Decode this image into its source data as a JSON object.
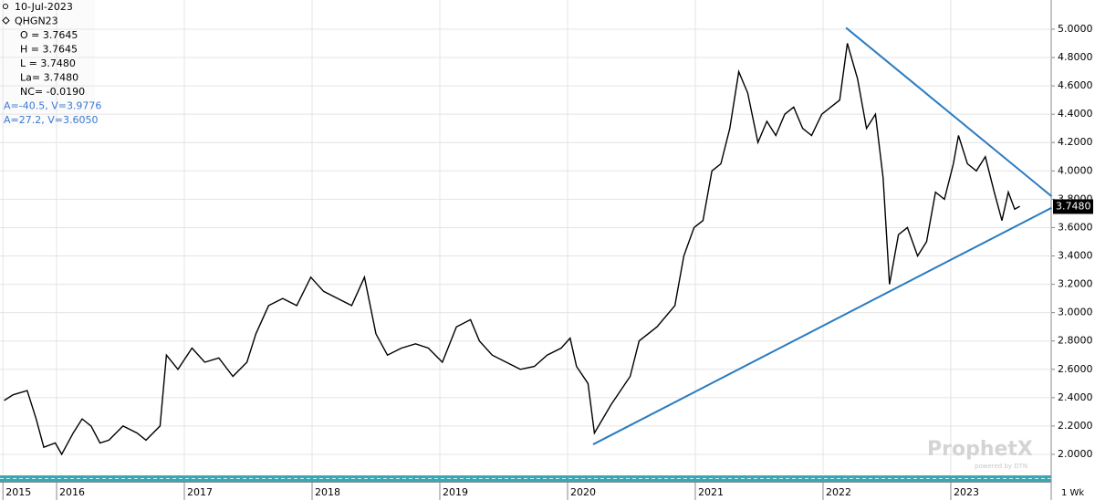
{
  "chart_data": {
    "type": "line",
    "header": [
      "10-Jul-2023",
      "QHGN23",
      "O = 3.7645",
      "H = 3.7645",
      "L = 3.7480",
      "La= 3.7480",
      "NC= -0.0190",
      "A=-40.5, V=3.9776",
      "A=27.2, V=3.6050"
    ],
    "series": [
      {
        "name": "QHGN23",
        "color": "#000000",
        "x": [
          2015.59,
          2015.66,
          2015.77,
          2015.84,
          2015.9,
          2015.99,
          2016.04,
          2016.13,
          2016.2,
          2016.27,
          2016.34,
          2016.41,
          2016.52,
          2016.63,
          2016.7,
          2016.81,
          2016.86,
          2016.95,
          2017.06,
          2017.16,
          2017.27,
          2017.38,
          2017.49,
          2017.56,
          2017.66,
          2017.77,
          2017.88,
          2017.99,
          2018.09,
          2018.2,
          2018.31,
          2018.41,
          2018.5,
          2018.59,
          2018.7,
          2018.81,
          2018.91,
          2019.02,
          2019.13,
          2019.24,
          2019.31,
          2019.41,
          2019.52,
          2019.63,
          2019.74,
          2019.84,
          2019.95,
          2020.02,
          2020.07,
          2020.16,
          2020.21,
          2020.34,
          2020.49,
          2020.56,
          2020.7,
          2020.84,
          2020.91,
          2020.99,
          2021.06,
          2021.13,
          2021.2,
          2021.27,
          2021.34,
          2021.41,
          2021.49,
          2021.56,
          2021.63,
          2021.7,
          2021.77,
          2021.84,
          2021.91,
          2021.99,
          2022.06,
          2022.13,
          2022.19,
          2022.27,
          2022.34,
          2022.41,
          2022.47,
          2022.52,
          2022.59,
          2022.66,
          2022.74,
          2022.81,
          2022.88,
          2022.95,
          2023.02,
          2023.06,
          2023.13,
          2023.2,
          2023.27,
          2023.34,
          2023.4,
          2023.45,
          2023.5,
          2023.54
        ],
        "values": [
          2.38,
          2.42,
          2.45,
          2.25,
          2.05,
          2.08,
          2.0,
          2.15,
          2.25,
          2.2,
          2.08,
          2.1,
          2.2,
          2.15,
          2.1,
          2.2,
          2.7,
          2.6,
          2.75,
          2.65,
          2.68,
          2.55,
          2.65,
          2.85,
          3.05,
          3.1,
          3.05,
          3.25,
          3.15,
          3.1,
          3.05,
          3.25,
          2.85,
          2.7,
          2.75,
          2.78,
          2.75,
          2.65,
          2.9,
          2.95,
          2.8,
          2.7,
          2.65,
          2.6,
          2.62,
          2.7,
          2.75,
          2.82,
          2.62,
          2.5,
          2.15,
          2.35,
          2.55,
          2.8,
          2.9,
          3.05,
          3.4,
          3.6,
          3.65,
          4.0,
          4.05,
          4.3,
          4.7,
          4.55,
          4.2,
          4.35,
          4.25,
          4.4,
          4.45,
          4.3,
          4.25,
          4.4,
          4.45,
          4.5,
          4.9,
          4.65,
          4.3,
          4.4,
          3.95,
          3.2,
          3.55,
          3.6,
          3.4,
          3.5,
          3.85,
          3.8,
          4.05,
          4.25,
          4.05,
          4.0,
          4.1,
          3.85,
          3.65,
          3.85,
          3.73,
          3.75
        ]
      }
    ],
    "trendlines": [
      {
        "color": "#2b7bc0",
        "x": [
          2022.18,
          2023.79
        ],
        "y": [
          5.01,
          3.82
        ]
      },
      {
        "color": "#2b7bc0",
        "x": [
          2020.2,
          2023.79
        ],
        "y": [
          2.07,
          3.74
        ]
      }
    ],
    "last_value": {
      "value": 3.748,
      "label": "3.7480"
    },
    "xlim": [
      2015.557,
      2023.786
    ],
    "xticks": [
      {
        "value": 2015.58,
        "label": "2015"
      },
      2016,
      2017,
      2018,
      2019,
      2020,
      2021,
      2022,
      2023
    ],
    "ylim": [
      1.858,
      5.206
    ],
    "yticks": [
      {
        "value": 2,
        "label": "2.0000"
      },
      {
        "value": 2.2,
        "label": "2.2000"
      },
      {
        "value": 2.4,
        "label": "2.4000"
      },
      {
        "value": 2.6,
        "label": "2.6000"
      },
      {
        "value": 2.8,
        "label": "2.8000"
      },
      {
        "value": 3,
        "label": "3.0000"
      },
      {
        "value": 3.2,
        "label": "3.2000"
      },
      {
        "value": 3.4,
        "label": "3.4000"
      },
      {
        "value": 3.6,
        "label": "3.6000"
      },
      {
        "value": 3.8,
        "label": "3.8000"
      },
      {
        "value": 4,
        "label": "4.0000"
      },
      {
        "value": 4.2,
        "label": "4.2000"
      },
      {
        "value": 4.4,
        "label": "4.4000"
      },
      {
        "value": 4.6,
        "label": "4.6000"
      },
      {
        "value": 4.8,
        "label": "4.8000"
      },
      {
        "value": 5,
        "label": "5.0000"
      }
    ],
    "grid": true,
    "period_label": "1 Wk",
    "watermark": "ProphetX",
    "watermark_sub": "powered by DTN"
  }
}
